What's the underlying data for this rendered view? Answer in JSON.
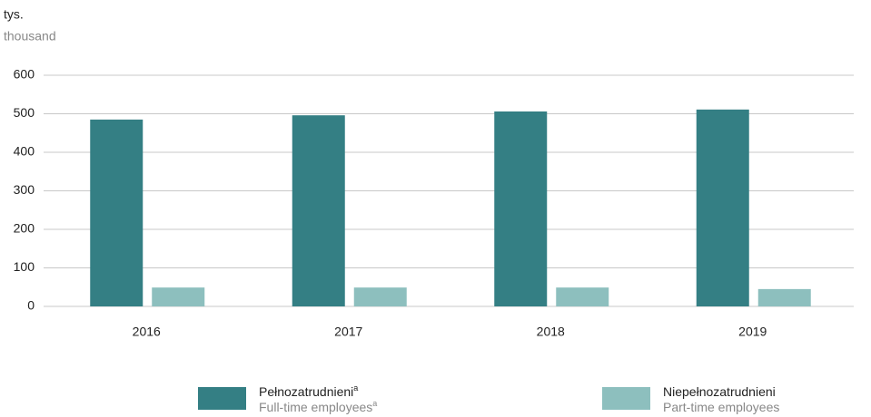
{
  "chart_data": {
    "type": "bar",
    "y_unit": "tys.",
    "y_unit_en": "thousand",
    "categories": [
      "2016",
      "2017",
      "2018",
      "2019"
    ],
    "series": [
      {
        "name": "Pełnozatrudnieni",
        "name_en": "Full-time employees",
        "superscript": "a",
        "color": "#347f84",
        "values": [
          485,
          496,
          506,
          511
        ]
      },
      {
        "name": "Niepełnozatrudnieni",
        "name_en": "Part-time employees",
        "color": "#8dbfbe",
        "values": [
          49,
          49,
          49,
          45
        ]
      }
    ],
    "ylim": [
      0,
      600
    ],
    "yticks": [
      0,
      100,
      200,
      300,
      400,
      500,
      600
    ],
    "grid": true
  }
}
